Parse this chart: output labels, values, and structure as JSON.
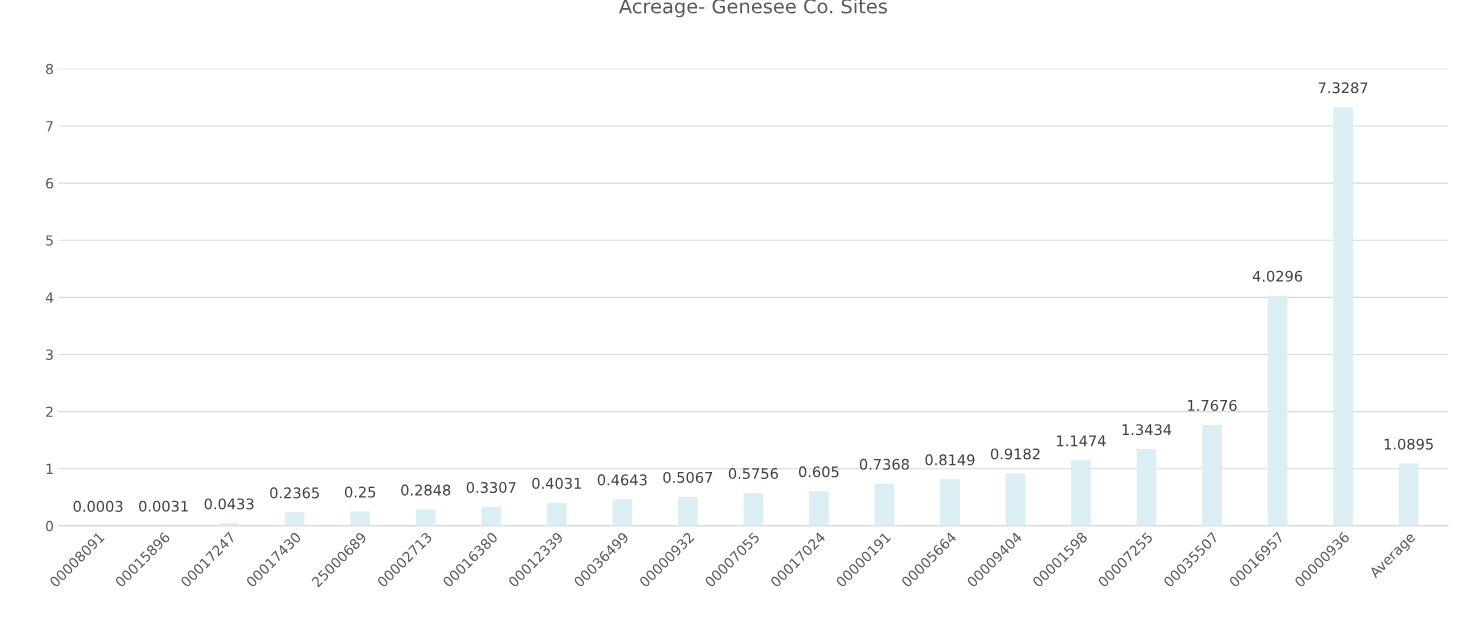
{
  "chart_data": {
    "type": "bar",
    "title": "Acreage- Genesee Co. Sites",
    "categories": [
      "00008091",
      "00015896",
      "00017247",
      "00017430",
      "25000689",
      "00002713",
      "00016380",
      "00012339",
      "00036499",
      "00000932",
      "00007055",
      "00017024",
      "00000191",
      "00005664",
      "00009404",
      "00001598",
      "00007255",
      "00035507",
      "00016957",
      "00000936",
      "Average"
    ],
    "values": [
      0.0003,
      0.0031,
      0.0433,
      0.2365,
      0.25,
      0.2848,
      0.3307,
      0.4031,
      0.4643,
      0.5067,
      0.5756,
      0.605,
      0.7368,
      0.8149,
      0.9182,
      1.1474,
      1.3434,
      1.7676,
      4.0296,
      7.3287,
      1.0895
    ],
    "color": "#daeef3",
    "ylim": [
      0,
      8
    ],
    "yticks": [
      0,
      1,
      2,
      3,
      4,
      5,
      6,
      7,
      8
    ],
    "grid": "y",
    "data_labels": true
  }
}
